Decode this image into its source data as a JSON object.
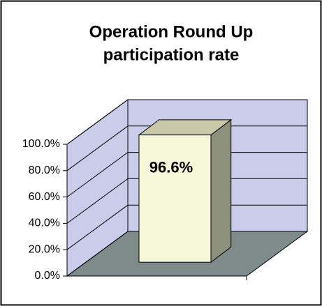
{
  "chart_data": {
    "type": "bar3d",
    "title": [
      "Operation Round Up",
      "participation rate"
    ],
    "categories": [
      null
    ],
    "values": [
      96.6
    ],
    "value_labels": [
      "96.6%"
    ],
    "color": "#f6f6d8",
    "ylim": [
      0,
      100
    ],
    "yticks": [
      {
        "value": 0,
        "label": "0.0%"
      },
      {
        "value": 20,
        "label": "20.0%"
      },
      {
        "value": 40,
        "label": "40.0%"
      },
      {
        "value": 60,
        "label": "60.0%"
      },
      {
        "value": 80,
        "label": "80.0%"
      },
      {
        "value": 100,
        "label": "100.0%"
      }
    ],
    "grid": true
  }
}
